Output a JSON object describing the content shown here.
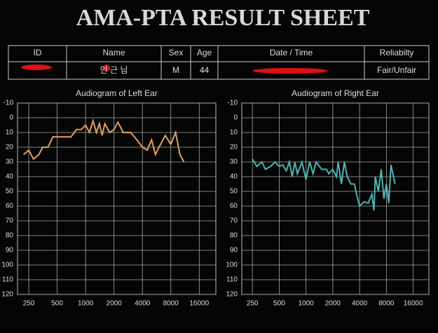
{
  "header": {
    "title": "AMA-PTA RESULT SHEET"
  },
  "table": {
    "columns": [
      "ID",
      "Name",
      "Sex",
      "Age",
      "Date / Time",
      "Reliabilty"
    ],
    "row": [
      "",
      "인 근 님",
      "M",
      "44",
      "",
      "Fair/Unfair"
    ]
  },
  "chart_data": [
    {
      "type": "line",
      "title": "Audiogram of Left Ear",
      "log_x": true,
      "invert_y": true,
      "grid": true,
      "xlim": [
        190,
        24000
      ],
      "xticks": [
        250,
        500,
        1000,
        2000,
        4000,
        8000,
        16000
      ],
      "ylim": [
        -10,
        120
      ],
      "yticks": [
        -10,
        0,
        10,
        20,
        30,
        40,
        50,
        60,
        70,
        80,
        90,
        100,
        110,
        120
      ],
      "series": [
        {
          "name": "Left",
          "color": "#e0a060",
          "x": [
            220,
            250,
            280,
            320,
            350,
            400,
            450,
            500,
            600,
            700,
            800,
            900,
            1000,
            1100,
            1200,
            1300,
            1400,
            1500,
            1600,
            1800,
            2000,
            2200,
            2500,
            3000,
            3500,
            4000,
            4500,
            5000,
            5500,
            6000,
            7000,
            8000,
            9000,
            10000,
            11000
          ],
          "values": [
            25,
            22,
            28,
            25,
            20,
            20,
            13,
            13,
            13,
            13,
            8,
            8,
            5,
            10,
            2,
            10,
            4,
            12,
            4,
            10,
            8,
            3,
            10,
            10,
            15,
            20,
            22,
            15,
            25,
            20,
            12,
            18,
            10,
            25,
            30
          ]
        }
      ]
    },
    {
      "type": "line",
      "title": "Audiogram of Right Ear",
      "log_x": true,
      "invert_y": true,
      "grid": true,
      "xlim": [
        190,
        24000
      ],
      "xticks": [
        250,
        500,
        1000,
        2000,
        4000,
        8000,
        16000
      ],
      "ylim": [
        -10,
        120
      ],
      "yticks": [
        -10,
        0,
        10,
        20,
        30,
        40,
        50,
        60,
        70,
        80,
        90,
        100,
        110,
        120
      ],
      "series": [
        {
          "name": "Right",
          "color": "#4fb3b3",
          "x": [
            250,
            280,
            320,
            350,
            400,
            450,
            500,
            550,
            600,
            650,
            700,
            750,
            800,
            900,
            1000,
            1100,
            1200,
            1300,
            1500,
            1700,
            1800,
            2000,
            2200,
            2300,
            2500,
            2700,
            2900,
            3200,
            3500,
            3700,
            4000,
            4500,
            5000,
            5500,
            5800,
            6000,
            6500,
            7000,
            7500,
            8000,
            8500,
            9000,
            10000
          ],
          "values": [
            28,
            33,
            30,
            35,
            33,
            30,
            33,
            32,
            36,
            30,
            40,
            30,
            38,
            30,
            42,
            30,
            38,
            30,
            35,
            35,
            38,
            35,
            40,
            30,
            45,
            30,
            40,
            45,
            45,
            52,
            60,
            57,
            58,
            52,
            63,
            40,
            50,
            35,
            55,
            45,
            58,
            32,
            45
          ]
        }
      ]
    }
  ]
}
